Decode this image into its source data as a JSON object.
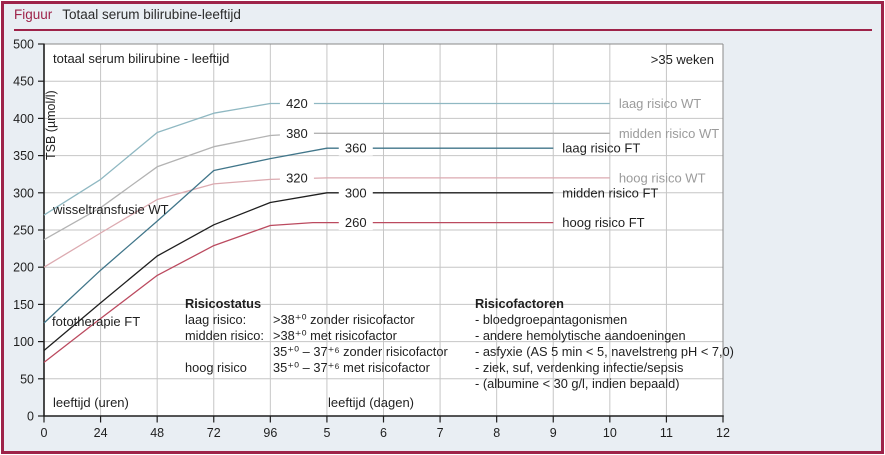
{
  "header": {
    "figure_label": "Figuur",
    "title": "Totaal serum bilirubine-leeftijd"
  },
  "colors": {
    "accent": "#9e2349",
    "background": "#e9eef3",
    "plot_background": "#ffffff",
    "grid": "#c6c6c6",
    "axis": "#1f1f1f",
    "frame": "#8a8a8a",
    "muted_label": "#9b9b9b",
    "text": "#1f1f1f"
  },
  "chart_data": {
    "type": "line",
    "title": "totaal serum bilirubine - leeftijd",
    "note": ">35 weken",
    "ylabel": "TSB (µmol/l)",
    "x_axis": {
      "hours_label": "leeftijd (uren)",
      "days_label": "leeftijd (dagen)",
      "max_days": 12,
      "ticks": [
        {
          "label": "0",
          "day": 0
        },
        {
          "label": "24",
          "day": 1
        },
        {
          "label": "48",
          "day": 2
        },
        {
          "label": "72",
          "day": 3
        },
        {
          "label": "96",
          "day": 4
        },
        {
          "label": "5",
          "day": 5
        },
        {
          "label": "6",
          "day": 6
        },
        {
          "label": "7",
          "day": 7
        },
        {
          "label": "8",
          "day": 8
        },
        {
          "label": "9",
          "day": 9
        },
        {
          "label": "10",
          "day": 10
        },
        {
          "label": "11",
          "day": 11
        },
        {
          "label": "12",
          "day": 12
        }
      ]
    },
    "y_axis": {
      "min": 0,
      "max": 500,
      "step": 50
    },
    "annotations": {
      "exchange_label": "wisseltransfusie WT",
      "photo_label": "fototherapie FT"
    },
    "series": [
      {
        "id": "laag-risico-wt",
        "label": "laag risico WT",
        "threshold": 420,
        "color": "#8fb8c2",
        "label_style": "muted",
        "value_label_day": 4.47,
        "points_hours_value": [
          [
            0,
            270
          ],
          [
            24,
            318
          ],
          [
            48,
            381
          ],
          [
            72,
            407
          ],
          [
            96,
            420
          ],
          [
            240,
            420
          ]
        ]
      },
      {
        "id": "midden-risico-wt",
        "label": "midden risico WT",
        "threshold": 380,
        "color": "#b3b3b3",
        "label_style": "muted",
        "value_label_day": 4.47,
        "points_hours_value": [
          [
            0,
            237
          ],
          [
            24,
            280
          ],
          [
            48,
            335
          ],
          [
            72,
            362
          ],
          [
            96,
            377
          ],
          [
            112,
            380
          ],
          [
            240,
            380
          ]
        ]
      },
      {
        "id": "hoog-risico-wt",
        "label": "hoog risico WT",
        "threshold": 320,
        "color": "#dcaab0",
        "label_style": "muted",
        "value_label_day": 4.47,
        "points_hours_value": [
          [
            0,
            200
          ],
          [
            24,
            246
          ],
          [
            48,
            291
          ],
          [
            72,
            312
          ],
          [
            96,
            318
          ],
          [
            120,
            320
          ],
          [
            240,
            320
          ]
        ]
      },
      {
        "id": "laag-risico-ft",
        "label": "laag risico FT",
        "threshold": 360,
        "color": "#41768a",
        "label_style": "dark",
        "value_label_day": 5.51,
        "points_hours_value": [
          [
            0,
            125
          ],
          [
            24,
            196
          ],
          [
            48,
            262
          ],
          [
            72,
            330
          ],
          [
            96,
            346
          ],
          [
            120,
            360
          ],
          [
            216,
            360
          ]
        ]
      },
      {
        "id": "midden-risico-ft",
        "label": "midden risico FT",
        "threshold": 300,
        "color": "#1f1f1f",
        "label_style": "dark",
        "value_label_day": 5.51,
        "points_hours_value": [
          [
            0,
            88
          ],
          [
            24,
            152
          ],
          [
            48,
            215
          ],
          [
            72,
            257
          ],
          [
            96,
            287
          ],
          [
            120,
            300
          ],
          [
            216,
            300
          ]
        ]
      },
      {
        "id": "hoog-risico-ft",
        "label": "hoog risico FT",
        "threshold": 260,
        "color": "#bb4a5f",
        "label_style": "dark",
        "value_label_day": 5.51,
        "points_hours_value": [
          [
            0,
            72
          ],
          [
            24,
            131
          ],
          [
            48,
            189
          ],
          [
            72,
            229
          ],
          [
            96,
            256
          ],
          [
            114,
            260
          ],
          [
            216,
            260
          ]
        ]
      }
    ]
  },
  "legend": {
    "risicostatus": {
      "title": "Risicostatus",
      "rows": [
        {
          "label": "laag risico:",
          "value": ">38⁺⁰ zonder risicofactor"
        },
        {
          "label": "midden risico:",
          "value": ">38⁺⁰ met risicofactor"
        },
        {
          "label": "",
          "value": "35⁺⁰ – 37⁺⁶ zonder risicofactor"
        },
        {
          "label": "hoog risico",
          "value": "35⁺⁰ – 37⁺⁶ met risicofactor"
        }
      ]
    },
    "risicofactoren": {
      "title": "Risicofactoren",
      "items": [
        "- bloedgroepantagonismen",
        "- andere hemolytische aandoeningen",
        "- asfyxie (AS 5 min < 5, navelstreng pH < 7,0)",
        "- ziek, suf, verdenking infectie/sepsis",
        "- (albumine < 30 g/l, indien bepaald)"
      ]
    }
  }
}
